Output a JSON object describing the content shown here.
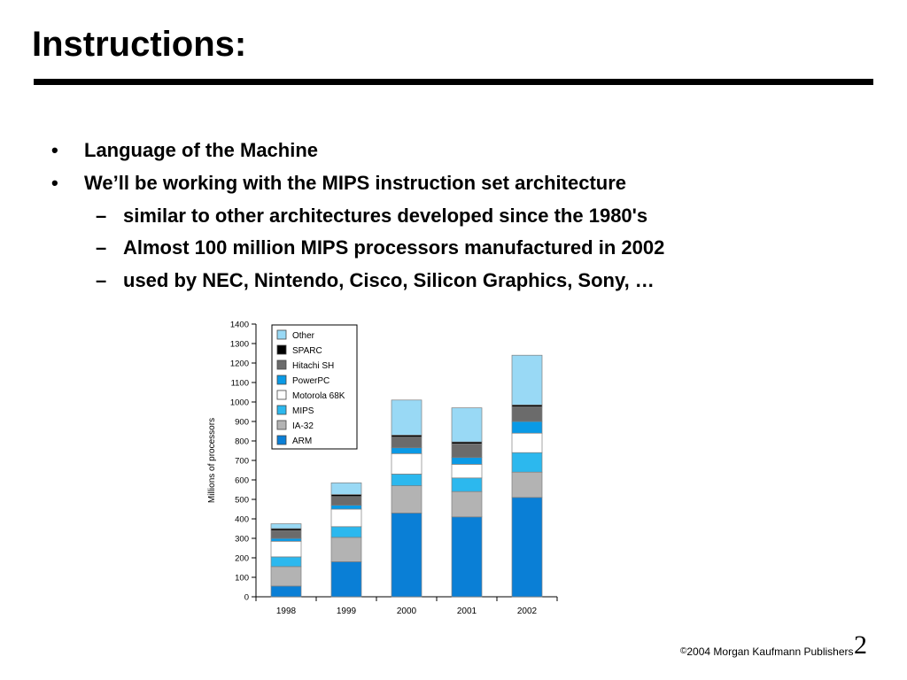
{
  "slide": {
    "title": "Instructions:",
    "bullets": [
      {
        "level": 1,
        "marker": "•",
        "text": "Language of the Machine"
      },
      {
        "level": 1,
        "marker": "•",
        "text": "We’ll be working with the MIPS instruction set architecture"
      },
      {
        "level": 2,
        "marker": "–",
        "text": "similar to other architectures developed since the 1980's"
      },
      {
        "level": 2,
        "marker": "–",
        "text": "Almost 100 million MIPS processors manufactured in 2002"
      },
      {
        "level": 2,
        "marker": "–",
        "text": "used by NEC, Nintendo, Cisco, Silicon Graphics, Sony, …"
      }
    ],
    "footer": {
      "copyright_symbol": "©",
      "text": "2004 Morgan Kaufmann Publishers",
      "page_number": "2"
    }
  },
  "colors": {
    "Other": "#99D9F5",
    "SPARC": "#000000",
    "Hitachi SH": "#6B6B6B",
    "PowerPC": "#0A9AE6",
    "Motorola 68K": "#FFFFFF",
    "MIPS": "#2CB8EE",
    "IA-32": "#B3B3B3",
    "ARM": "#0A7FD6"
  },
  "chart_data": {
    "type": "bar",
    "stacked": true,
    "title": "",
    "xlabel": "",
    "ylabel": "Millions of processors",
    "ylim": [
      0,
      1400
    ],
    "yticks": [
      0,
      100,
      200,
      300,
      400,
      500,
      600,
      700,
      800,
      900,
      1000,
      1100,
      1200,
      1300,
      1400
    ],
    "categories": [
      "1998",
      "1999",
      "2000",
      "2001",
      "2002"
    ],
    "legend_position": "top-left",
    "legend_order": [
      "Other",
      "SPARC",
      "Hitachi SH",
      "PowerPC",
      "Motorola 68K",
      "MIPS",
      "IA-32",
      "ARM"
    ],
    "series": [
      {
        "name": "ARM",
        "values": [
          55,
          180,
          430,
          410,
          510
        ]
      },
      {
        "name": "IA-32",
        "values": [
          100,
          125,
          140,
          130,
          130
        ]
      },
      {
        "name": "MIPS",
        "values": [
          50,
          55,
          60,
          70,
          100
        ]
      },
      {
        "name": "Motorola 68K",
        "values": [
          80,
          90,
          105,
          70,
          100
        ]
      },
      {
        "name": "PowerPC",
        "values": [
          15,
          20,
          30,
          35,
          60
        ]
      },
      {
        "name": "Hitachi SH",
        "values": [
          40,
          45,
          55,
          70,
          75
        ]
      },
      {
        "name": "SPARC",
        "values": [
          10,
          10,
          10,
          10,
          10
        ]
      },
      {
        "name": "Other",
        "values": [
          25,
          60,
          180,
          175,
          255
        ]
      }
    ]
  }
}
